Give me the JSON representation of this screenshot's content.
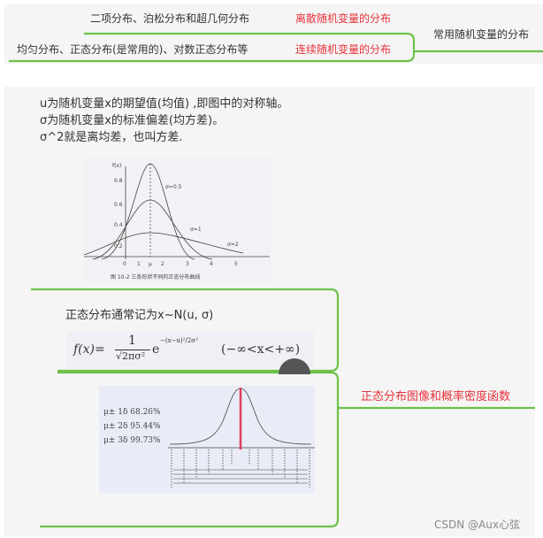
{
  "top": {
    "root": "常用随机变量的分布",
    "branches": [
      {
        "label": "离散随机变量的分布",
        "detail": "二项分布、泊松分布和超几何分布"
      },
      {
        "label": "连续随机变量的分布",
        "detail": "均匀分布、正态分布(是常用的)、对数正态分布等"
      }
    ]
  },
  "normal": {
    "notes": [
      "u为随机变量x的期望值(均值) ,即图中的对称轴。",
      "σ为随机变量x的标准偏差(均方差)。",
      "σ^2就是离均差，也叫方差."
    ],
    "figure1": {
      "ylabel": "f(x)",
      "yticks": [
        "0.8",
        "0.6",
        "0.4",
        "0.2"
      ],
      "xticks": [
        "0",
        "1",
        "μ",
        "2",
        "3",
        "4",
        "5"
      ],
      "curves": [
        "σ=0.5",
        "σ=1",
        "σ=2"
      ],
      "caption": "图 10-2  三条形状不同的正态分布曲线"
    },
    "notation": "正态分布通常记为x~N(u, σ)",
    "formula": {
      "lhs": "f(x)=",
      "num": "1",
      "den": "√2πσ²",
      "exp": "e",
      "sup": "−(x−u)²/2σ²",
      "range": "(−∞<x<+∞)"
    },
    "figure2": {
      "rows": [
        "μ± 1δ  68.26%",
        "μ± 2δ  95.44%",
        "μ± 3δ  99.73%"
      ]
    },
    "branch_label": "正态分布图像和概率密度函数"
  },
  "watermark": "CSDN @Aux心弦",
  "colors": {
    "line": "#6cc24a",
    "accent": "#e8323c",
    "panel": "#f5f5f5"
  }
}
